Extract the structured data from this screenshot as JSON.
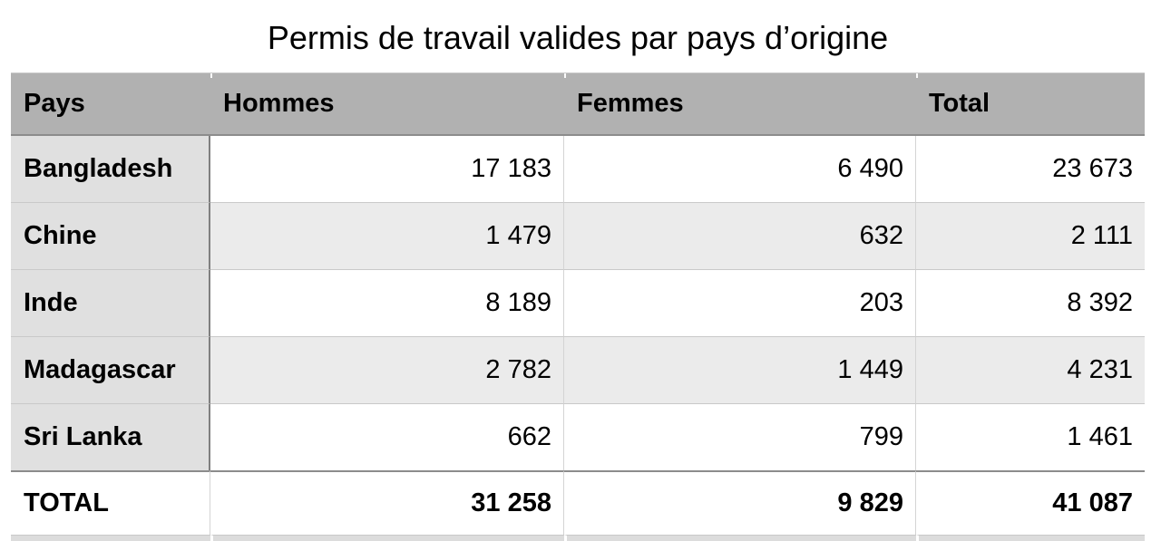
{
  "title": "Permis de travail valides par pays d’origine",
  "table": {
    "columns": [
      "Pays",
      "Hommes",
      "Femmes",
      "Total"
    ],
    "rows": [
      {
        "country": "Bangladesh",
        "hommes": "17 183",
        "femmes": "6 490",
        "total": "23 673"
      },
      {
        "country": "Chine",
        "hommes": "1 479",
        "femmes": "632",
        "total": "2 111"
      },
      {
        "country": "Inde",
        "hommes": "8 189",
        "femmes": "203",
        "total": "8 392"
      },
      {
        "country": "Madagascar",
        "hommes": "2 782",
        "femmes": "1 449",
        "total": "4 231"
      },
      {
        "country": "Sri Lanka",
        "hommes": "662",
        "femmes": "799",
        "total": "1 461"
      }
    ],
    "total_row": {
      "label": "TOTAL",
      "hommes": "31 258",
      "femmes": "9 829",
      "total": "41 087"
    }
  },
  "colors": {
    "header_bg": "#b1b1b1",
    "label_column_bg": "#e0e0e0",
    "alt_row_bg": "#ebebeb",
    "row_bg": "#ffffff",
    "dark_separator": "#8c8c8c",
    "light_separator": "#c9c9c9",
    "text": "#000000"
  },
  "chart_data": {
    "type": "table",
    "title": "Permis de travail valides par pays d’origine",
    "columns": [
      "Pays",
      "Hommes",
      "Femmes",
      "Total"
    ],
    "categories": [
      "Bangladesh",
      "Chine",
      "Inde",
      "Madagascar",
      "Sri Lanka"
    ],
    "series": [
      {
        "name": "Hommes",
        "values": [
          17183,
          1479,
          8189,
          2782,
          662
        ]
      },
      {
        "name": "Femmes",
        "values": [
          6490,
          632,
          203,
          1449,
          799
        ]
      },
      {
        "name": "Total",
        "values": [
          23673,
          2111,
          8392,
          4231,
          1461
        ]
      }
    ],
    "totals_row": {
      "label": "TOTAL",
      "Hommes": 31258,
      "Femmes": 9829,
      "Total": 41087
    }
  }
}
